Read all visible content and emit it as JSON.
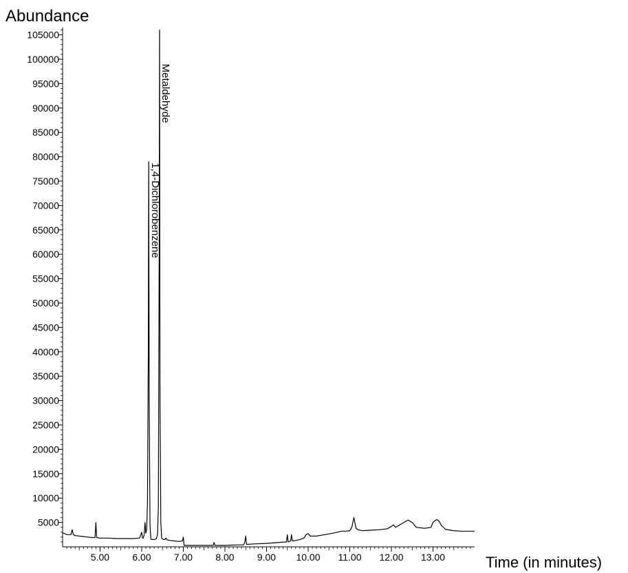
{
  "chart_data": {
    "type": "line",
    "title": "",
    "ylabel": "Abundance",
    "xlabel": "Time (in minutes)",
    "xlim": [
      4.1,
      14.0
    ],
    "ylim": [
      0,
      106500
    ],
    "x_ticks": [
      5.0,
      6.0,
      7.0,
      8.0,
      9.0,
      10.0,
      11.0,
      12.0,
      13.0
    ],
    "x_tick_labels": [
      "5.00",
      "6.00",
      "7.00",
      "8.00",
      "9.00",
      "10.00",
      "11.00",
      "12.00",
      "13.00"
    ],
    "y_ticks": [
      5000,
      10000,
      15000,
      20000,
      25000,
      30000,
      35000,
      40000,
      45000,
      50000,
      55000,
      60000,
      65000,
      70000,
      75000,
      80000,
      85000,
      90000,
      95000,
      100000,
      105000
    ],
    "y_tick_labels": [
      "5000",
      "10000",
      "15000",
      "20000",
      "25000",
      "30000",
      "35000",
      "40000",
      "45000",
      "50000",
      "55000",
      "60000",
      "65000",
      "70000",
      "75000",
      "80000",
      "85000",
      "90000",
      "95000",
      "100000",
      "105000"
    ],
    "grid": false,
    "series": [
      {
        "color": "#000000",
        "x": [
          4.1,
          4.2,
          4.3,
          4.33,
          4.36,
          4.4,
          4.5,
          4.6,
          4.7,
          4.8,
          4.88,
          4.9,
          4.92,
          5.0,
          5.2,
          5.4,
          5.6,
          5.8,
          5.95,
          6.0,
          6.02,
          6.04,
          6.06,
          6.08,
          6.1,
          6.12,
          6.14,
          6.16,
          6.17,
          6.18,
          6.2,
          6.22,
          6.25,
          6.3,
          6.35,
          6.38,
          6.4,
          6.42,
          6.43,
          6.44,
          6.46,
          6.48,
          6.52,
          6.56,
          6.58,
          6.62,
          6.7,
          6.8,
          6.9,
          6.98,
          7.0,
          7.02,
          7.1,
          7.3,
          7.5,
          7.72,
          7.74,
          7.76,
          8.0,
          8.3,
          8.45,
          8.48,
          8.5,
          8.52,
          8.7,
          9.0,
          9.3,
          9.48,
          9.5,
          9.52,
          9.58,
          9.6,
          9.62,
          9.7,
          9.8,
          9.9,
          9.95,
          10.0,
          10.05,
          10.2,
          10.4,
          10.6,
          10.7,
          10.8,
          10.9,
          11.0,
          11.05,
          11.1,
          11.15,
          11.2,
          11.3,
          11.5,
          11.7,
          11.9,
          12.0,
          12.05,
          12.1,
          12.2,
          12.3,
          12.4,
          12.5,
          12.6,
          12.8,
          12.95,
          13.0,
          13.05,
          13.1,
          13.15,
          13.2,
          13.3,
          13.5,
          13.7,
          13.9,
          14.0
        ],
        "y": [
          2900,
          2500,
          2500,
          3500,
          2500,
          2300,
          2200,
          2100,
          2000,
          1900,
          1900,
          5000,
          1900,
          1800,
          1800,
          1700,
          1700,
          1700,
          1800,
          3000,
          1800,
          1800,
          2500,
          5000,
          2800,
          3500,
          9000,
          40000,
          79000,
          30000,
          4500,
          1600,
          1500,
          1500,
          1600,
          2500,
          8000,
          60000,
          106000,
          30000,
          5000,
          1800,
          1500,
          1500,
          1800,
          1400,
          1300,
          1200,
          1100,
          1200,
          2000,
          300,
          300,
          300,
          300,
          300,
          900,
          300,
          300,
          400,
          400,
          1000,
          2200,
          500,
          600,
          700,
          900,
          1000,
          2500,
          1000,
          1200,
          2500,
          1200,
          1300,
          1500,
          1800,
          2500,
          2700,
          2200,
          2200,
          2500,
          2800,
          3000,
          3200,
          3200,
          3300,
          4000,
          6000,
          3800,
          3500,
          3300,
          3400,
          3500,
          3700,
          4200,
          4500,
          4000,
          4500,
          5000,
          5500,
          5000,
          4000,
          3800,
          4000,
          5000,
          5400,
          5600,
          5200,
          4400,
          3600,
          3300,
          3200,
          3200,
          3200
        ]
      }
    ],
    "annotations": [
      {
        "text": "Metaldehyde",
        "x": 6.5,
        "y": 93000
      },
      {
        "text": "1,4-Dichlorobenzene",
        "x": 6.25,
        "y": 69000
      }
    ]
  }
}
